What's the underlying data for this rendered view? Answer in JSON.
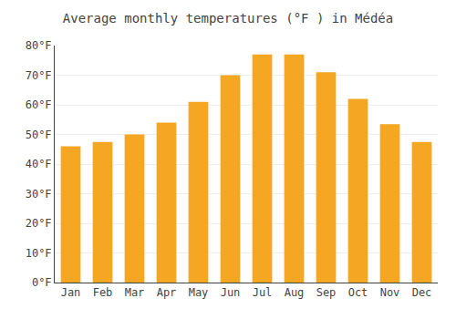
{
  "chart_data": {
    "type": "bar",
    "title": "Average monthly temperatures (°F ) in Médéa",
    "categories": [
      "Jan",
      "Feb",
      "Mar",
      "Apr",
      "May",
      "Jun",
      "Jul",
      "Aug",
      "Sep",
      "Oct",
      "Nov",
      "Dec"
    ],
    "values": [
      46,
      47.5,
      50,
      54,
      61,
      70,
      77,
      77,
      71,
      62,
      53.5,
      47.5
    ],
    "color": "#F5A623",
    "ylim": [
      0,
      80
    ],
    "yticks": [
      {
        "value": 0,
        "label": "0°F"
      },
      {
        "value": 10,
        "label": "10°F"
      },
      {
        "value": 20,
        "label": "20°F"
      },
      {
        "value": 30,
        "label": "30°F"
      },
      {
        "value": 40,
        "label": "40°F"
      },
      {
        "value": 50,
        "label": "50°F"
      },
      {
        "value": 60,
        "label": "60°F"
      },
      {
        "value": 70,
        "label": "70°F"
      },
      {
        "value": 80,
        "label": "80°F"
      }
    ],
    "grid": true
  }
}
